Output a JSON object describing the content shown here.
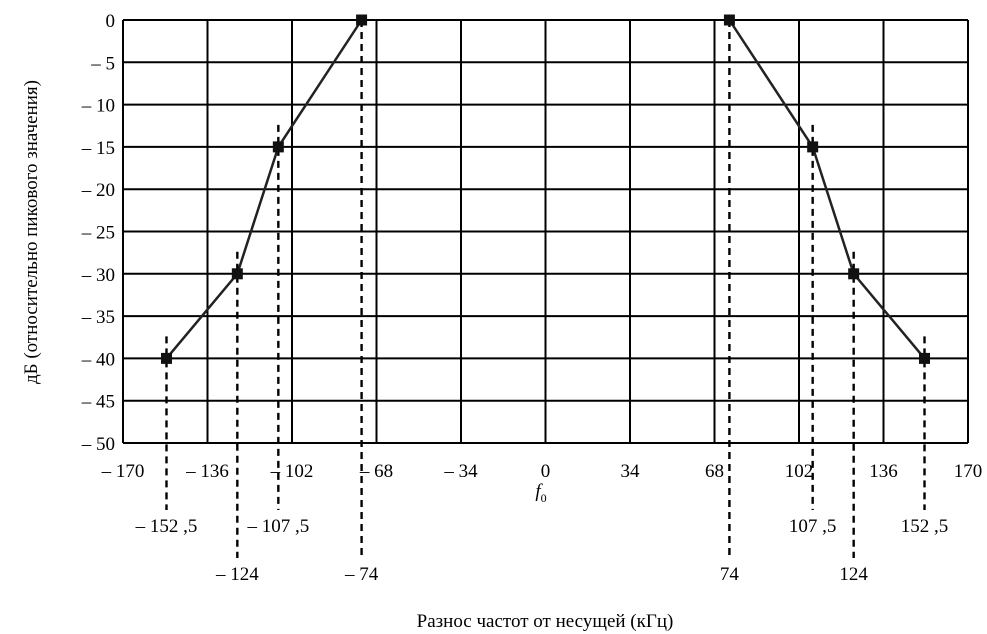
{
  "chart_data": {
    "type": "line",
    "xlabel": "Разнос частот от несущей (кГц)",
    "ylabel": "дБ (относительно пикового значения)",
    "xlim": [
      -170,
      170
    ],
    "ylim": [
      -50,
      0
    ],
    "grid": true,
    "x_ticks": [
      {
        "value": -170,
        "label": "– 170"
      },
      {
        "value": -136,
        "label": "– 136"
      },
      {
        "value": -102,
        "label": "– 102"
      },
      {
        "value": -68,
        "label": "– 68"
      },
      {
        "value": -34,
        "label": "– 34"
      },
      {
        "value": 0,
        "label": "0"
      },
      {
        "value": 34,
        "label": "34"
      },
      {
        "value": 68,
        "label": "68"
      },
      {
        "value": 102,
        "label": "102"
      },
      {
        "value": 136,
        "label": "136"
      },
      {
        "value": 170,
        "label": "170"
      }
    ],
    "y_ticks": [
      {
        "value": 0,
        "label": "0"
      },
      {
        "value": -5,
        "label": "– 5"
      },
      {
        "value": -10,
        "label": "– 10"
      },
      {
        "value": -15,
        "label": "– 15"
      },
      {
        "value": -20,
        "label": "– 20"
      },
      {
        "value": -25,
        "label": "– 25"
      },
      {
        "value": -30,
        "label": "– 30"
      },
      {
        "value": -35,
        "label": "– 35"
      },
      {
        "value": -40,
        "label": "– 40"
      },
      {
        "value": -45,
        "label": "– 45"
      },
      {
        "value": -50,
        "label": "– 50"
      }
    ],
    "series": [
      {
        "x": [
          -152.5,
          -124,
          -107.5,
          -74
        ],
        "y": [
          -40,
          -30,
          -15,
          0
        ]
      },
      {
        "x": [
          74,
          107.5,
          124,
          152.5
        ],
        "y": [
          0,
          -15,
          -30,
          -40
        ]
      }
    ],
    "center_label": {
      "main": "f",
      "sub": "0"
    },
    "marker_labels": [
      {
        "x": -152.5,
        "label": "– 152 ,5",
        "row": 1
      },
      {
        "x": -124,
        "label": "– 124",
        "row": 2
      },
      {
        "x": -107.5,
        "label": "– 107 ,5",
        "row": 1
      },
      {
        "x": -74,
        "label": "– 74",
        "row": 2
      },
      {
        "x": 74,
        "label": "74",
        "row": 2
      },
      {
        "x": 107.5,
        "label": "107 ,5",
        "row": 1
      },
      {
        "x": 124,
        "label": "124",
        "row": 2
      },
      {
        "x": 152.5,
        "label": "152 ,5",
        "row": 1
      }
    ],
    "line_color": "#222222",
    "grid_color": "#000000"
  }
}
